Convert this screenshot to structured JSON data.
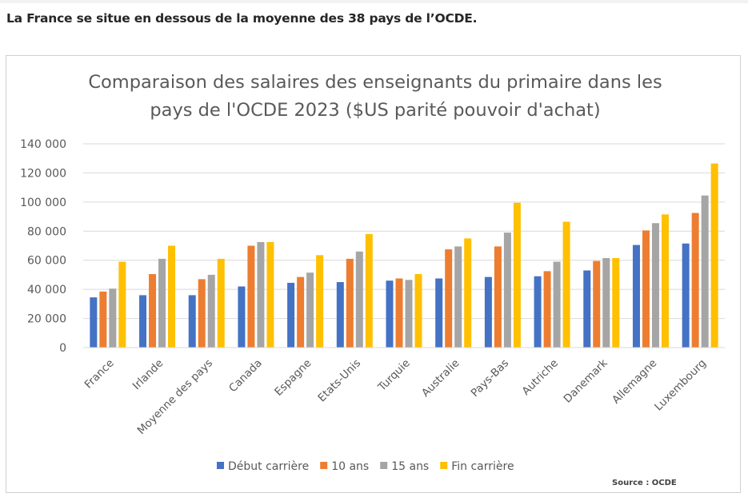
{
  "heading": "La France se situe en dessous de la moyenne des 38 pays de l’OCDE.",
  "source": "Source : OCDE",
  "colors": {
    "Début carrière": "#4472c4",
    "10 ans": "#ed7d31",
    "15 ans": "#a5a5a5",
    "Fin carrière": "#ffc000"
  },
  "chart_data": {
    "type": "bar",
    "title": "Comparaison des salaires des enseignants du primaire dans les pays de l'OCDE 2023 ($US parité pouvoir d'achat)",
    "title_lines": [
      "Comparaison des salaires des enseignants du primaire dans les",
      "pays de l'OCDE 2023 ($US parité pouvoir d'achat)"
    ],
    "xlabel": "",
    "ylabel": "",
    "ylim": [
      0,
      140000
    ],
    "yticks": [
      0,
      20000,
      40000,
      60000,
      80000,
      100000,
      120000,
      140000
    ],
    "ytick_labels": [
      "0",
      "20 000",
      "40 000",
      "60 000",
      "80 000",
      "100 000",
      "120 000",
      "140 000"
    ],
    "grid": "horizontal",
    "legend_position": "bottom",
    "categories": [
      "France",
      "Irlande",
      "Moyenne des pays",
      "Canada",
      "Espagne",
      "Etats-Unis",
      "Turquie",
      "Australie",
      "Pays-Bas",
      "Autriche",
      "Danemark",
      "Allemagne",
      "Luxembourg"
    ],
    "series": [
      {
        "name": "Début carrière",
        "values": [
          34500,
          36000,
          36000,
          42000,
          44500,
          45000,
          46000,
          47500,
          48500,
          49000,
          53000,
          70500,
          71500
        ]
      },
      {
        "name": "10 ans",
        "values": [
          38500,
          50500,
          47000,
          70000,
          48500,
          61000,
          47500,
          67500,
          69500,
          52500,
          59500,
          80500,
          92500
        ]
      },
      {
        "name": "15 ans",
        "values": [
          40500,
          61000,
          50000,
          72500,
          51500,
          66000,
          46500,
          69500,
          79000,
          59000,
          61500,
          85500,
          104500
        ]
      },
      {
        "name": "Fin carrière",
        "values": [
          59000,
          70000,
          61000,
          72500,
          63500,
          78000,
          50500,
          75000,
          99500,
          86500,
          61500,
          91500,
          126500
        ]
      }
    ]
  }
}
